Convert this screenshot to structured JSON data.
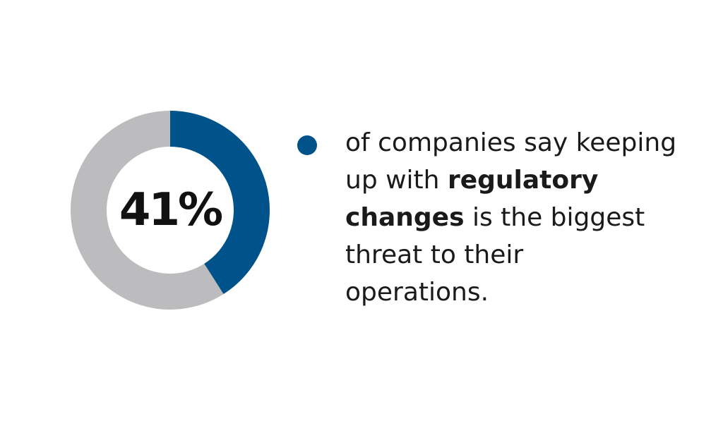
{
  "chart_data": {
    "type": "pie",
    "style": "donut",
    "slices": [
      {
        "label": "41%",
        "value": 41,
        "color": "#00538a"
      },
      {
        "value": 59,
        "color": "#bcbcbe"
      }
    ],
    "center_label": "41%",
    "annotation_lines": [
      [
        {
          "text": "of companies say keeping",
          "bold": false
        }
      ],
      [
        {
          "text": "up with ",
          "bold": false
        },
        {
          "text": "regulatory",
          "bold": true
        }
      ],
      [
        {
          "text": "changes",
          "bold": true
        },
        {
          "text": " is the biggest",
          "bold": false
        }
      ],
      [
        {
          "text": "threat to their",
          "bold": false
        }
      ],
      [
        {
          "text": "operations.",
          "bold": false
        }
      ]
    ]
  },
  "colors": {
    "accent": "#00538a",
    "remainder": "#bcbcbe",
    "text": "#1a1a1a"
  }
}
